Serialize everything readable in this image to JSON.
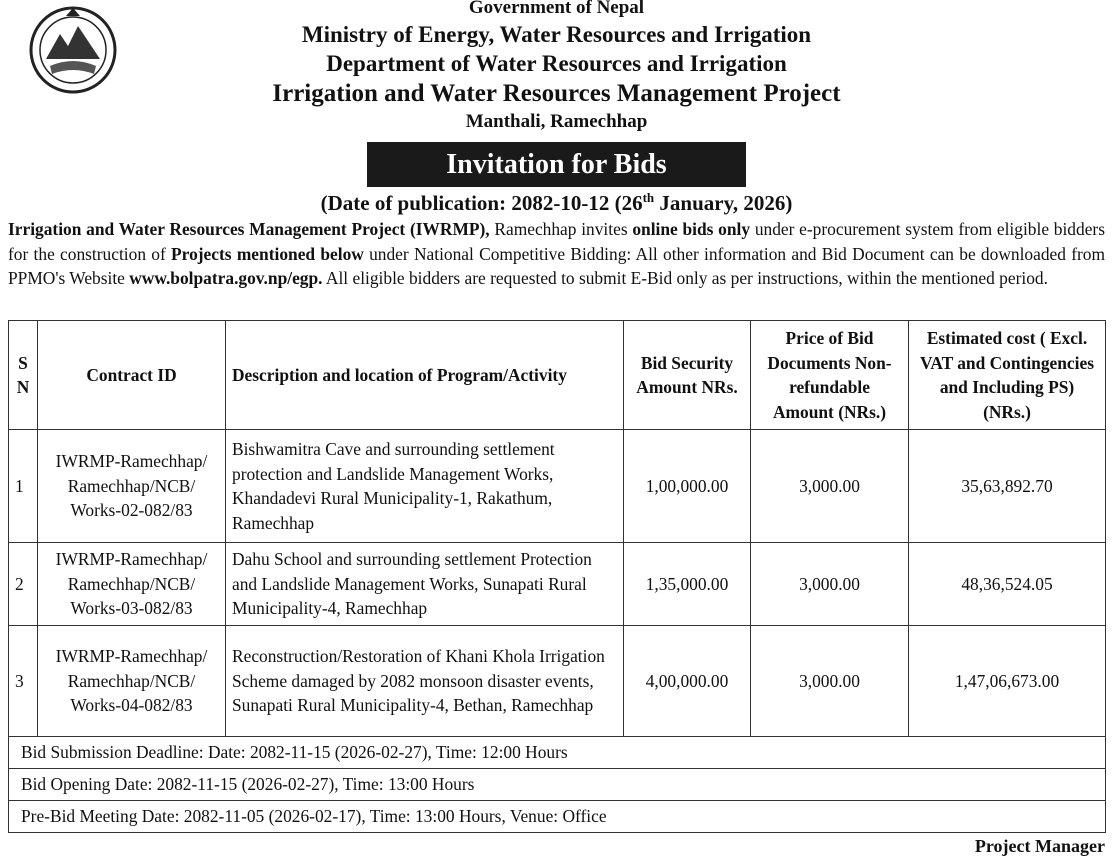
{
  "header": {
    "government": "Government of Nepal",
    "ministry": "Ministry of Energy, Water Resources and Irrigation",
    "department": "Department of Water Resources and Irrigation",
    "project": "Irrigation and Water Resources Management Project",
    "location": "Manthali, Ramechhap"
  },
  "notice_title": "Invitation for Bids",
  "publication": [
    "(Date of publication: 2082-10-12 (26",
    "th",
    " January, 2026)"
  ],
  "intro": [
    "Irrigation and Water Resources Management Project (IWRMP),",
    " Ramechhap invites ",
    "online bids only",
    " under e-procurement system from eligible bidders for the construction of ",
    "Projects mentioned below",
    " under National Competitive Bidding: All other information and Bid Document can be downloaded from PPMO's Website ",
    "www.bolpatra.gov.np/egp.",
    " All eligible bidders are requested to submit E-Bid only as per instructions, within the mentioned period."
  ],
  "table": {
    "headers": [
      "S N",
      "Contract ID",
      "Description and location of Program/Activity",
      "Bid Security Amount NRs.",
      "Price of Bid Documents Non-refundable Amount (NRs.)",
      "Estimated cost ( Excl. VAT and Contingencies and Including PS) (NRs.)"
    ],
    "rows": [
      [
        "1",
        "IWRMP-Ramechhap/ Ramechhap/NCB/ Works-02-082/83",
        "Bishwamitra Cave and surrounding settlement protection and Landslide Management Works, Khandadevi Rural Municipality-1, Rakathum, Ramechhap",
        "1,00,000.00",
        "3,000.00",
        "35,63,892.70"
      ],
      [
        "2",
        "IWRMP-Ramechhap/ Ramechhap/NCB/ Works-03-082/83",
        "Dahu School and surrounding settlement Protection and Landslide Management Works, Sunapati Rural Municipality-4, Ramechhap",
        "1,35,000.00",
        "3,000.00",
        "48,36,524.05"
      ],
      [
        "3",
        "IWRMP-Ramechhap/ Ramechhap/NCB/ Works-04-082/83",
        "Reconstruction/Restoration of Khani Khola Irrigation Scheme damaged by 2082 monsoon disaster events, Sunapati Rural Municipality-4, Bethan, Ramechhap",
        "4,00,000.00",
        "3,000.00",
        "1,47,06,673.00"
      ]
    ],
    "footer": [
      "Bid Submission Deadline: Date: 2082-11-15 (2026-02-27), Time: 12:00 Hours",
      "Bid Opening Date: 2082-11-15 (2026-02-27), Time: 13:00 Hours",
      "Pre-Bid Meeting Date: 2082-11-05 (2026-02-17), Time: 13:00 Hours, Venue: Office"
    ]
  },
  "signature": "Project Manager"
}
